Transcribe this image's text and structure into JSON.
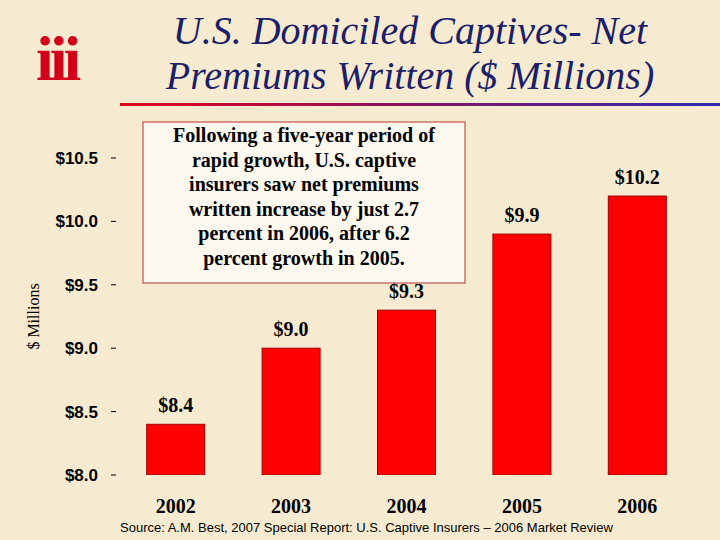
{
  "chart_data": {
    "type": "bar",
    "title": "U.S. Domiciled Captives- Net Premiums Written ($ Millions)",
    "logo": "iii",
    "y_label": "$ Millions",
    "annotation": [
      "Following a five-year period of",
      "rapid growth, U.S. captive",
      "insurers saw net premiums",
      "written increase by just 2.7",
      "percent in 2006, after 6.2",
      "percent growth in 2005."
    ],
    "source": "Source: A.M. Best, 2007 Special Report: U.S. Captive Insurers – 2006 Market Review",
    "categories": [
      "2002",
      "2003",
      "2004",
      "2005",
      "2006"
    ],
    "values": [
      8.4,
      9.0,
      9.3,
      9.9,
      10.2
    ],
    "value_labels": [
      "$8.4",
      "$9.0",
      "$9.3",
      "$9.9",
      "$10.2"
    ],
    "color": "#ff0000",
    "ylim": [
      8,
      10.5
    ],
    "yticks": [
      {
        "value": 8,
        "label": "$8.0"
      },
      {
        "value": 8.5,
        "label": "$8.5"
      },
      {
        "value": 9,
        "label": "$9.0"
      },
      {
        "value": 9.5,
        "label": "$9.5"
      },
      {
        "value": 10,
        "label": "$10.0"
      },
      {
        "value": 10.5,
        "label": "$10.5"
      }
    ],
    "grid": false,
    "data_labels": true
  }
}
